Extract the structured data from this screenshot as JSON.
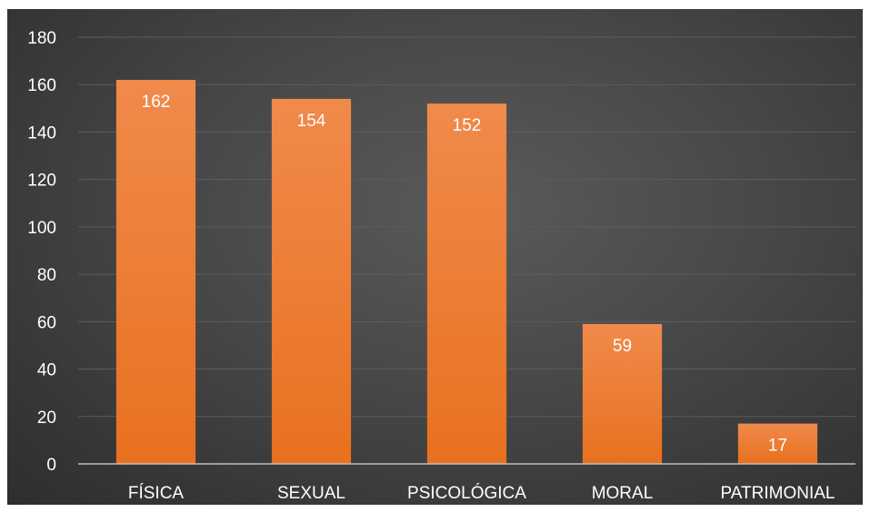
{
  "chart_data": {
    "type": "bar",
    "categories": [
      "FÍSICA",
      "SEXUAL",
      "PSICOLÓGICA",
      "MORAL",
      "PATRIMONIAL"
    ],
    "values": [
      162,
      154,
      152,
      59,
      17
    ],
    "title": "",
    "xlabel": "",
    "ylabel": "",
    "ylim": [
      0,
      180
    ],
    "yticks": [
      0,
      20,
      40,
      60,
      80,
      100,
      120,
      140,
      160,
      180
    ],
    "grid": true,
    "legend": "none",
    "data_labels": true
  },
  "colors": {
    "bar_top": "#f08a4b",
    "bar_bottom": "#e8711f",
    "gridline": "#5c5c5c",
    "axis": "#bfbfbf",
    "text": "#ffffff",
    "background": "#404040"
  }
}
